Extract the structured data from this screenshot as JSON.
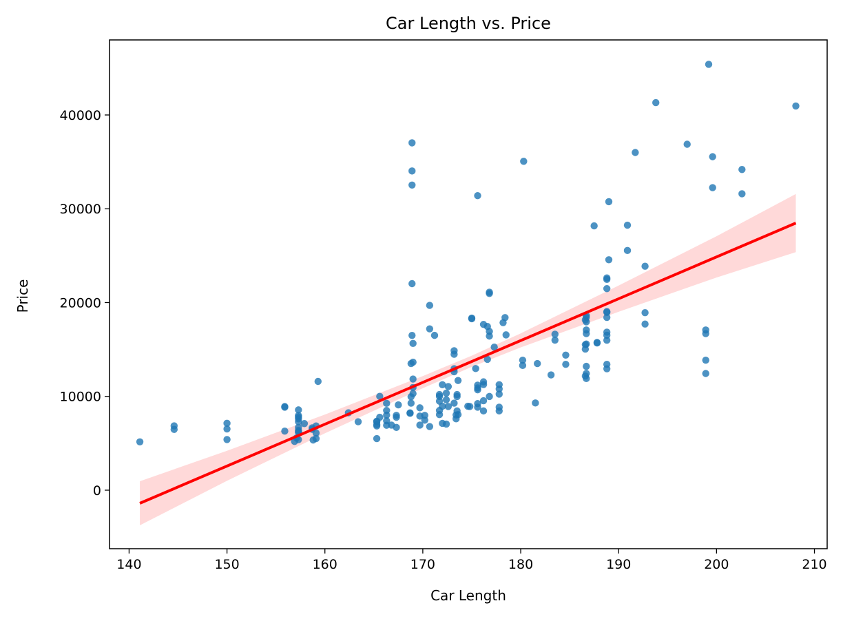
{
  "chart_data": {
    "type": "scatter",
    "title": "Car Length vs. Price",
    "xlabel": "Car Length",
    "ylabel": "Price",
    "xlim": [
      138,
      211.3
    ],
    "ylim": [
      -6240,
      48000
    ],
    "xticks": [
      140,
      150,
      160,
      170,
      180,
      190,
      200,
      210
    ],
    "yticks": [
      0,
      10000,
      20000,
      30000,
      40000
    ],
    "grid": false,
    "colors": {
      "points": "#1f77b4",
      "regression": "#ff0000",
      "band": "#ff0000"
    },
    "points": [
      [
        141.1,
        5151
      ],
      [
        144.6,
        6855
      ],
      [
        144.6,
        6479
      ],
      [
        150,
        7129
      ],
      [
        150,
        6529
      ],
      [
        150,
        5399
      ],
      [
        155.9,
        8916
      ],
      [
        155.9,
        8845
      ],
      [
        155.9,
        6295
      ],
      [
        157.1,
        5572
      ],
      [
        157.3,
        6377
      ],
      [
        157.3,
        6229
      ],
      [
        157.3,
        7957
      ],
      [
        157.3,
        8558
      ],
      [
        157.3,
        7609
      ],
      [
        157.3,
        7799
      ],
      [
        157.3,
        7299
      ],
      [
        157.3,
        6692
      ],
      [
        157.3,
        5389
      ],
      [
        157.3,
        6189
      ],
      [
        156.9,
        5195
      ],
      [
        157.9,
        7099
      ],
      [
        158.7,
        6488
      ],
      [
        158.8,
        5348
      ],
      [
        158.7,
        6649
      ],
      [
        159.1,
        6849
      ],
      [
        159.1,
        6095
      ],
      [
        159.1,
        5499
      ],
      [
        159.3,
        11595
      ],
      [
        162.4,
        8249
      ],
      [
        163.4,
        7295
      ],
      [
        165.3,
        5499
      ],
      [
        165.3,
        6989
      ],
      [
        165.3,
        7349
      ],
      [
        165.3,
        7299
      ],
      [
        165.3,
        6849
      ],
      [
        165.6,
        10005
      ],
      [
        165.6,
        7775
      ],
      [
        166.3,
        7999
      ],
      [
        166.3,
        7395
      ],
      [
        166.3,
        8495
      ],
      [
        166.3,
        9258
      ],
      [
        166.3,
        6918
      ],
      [
        166.8,
        6938
      ],
      [
        167.3,
        7775
      ],
      [
        167.3,
        6695
      ],
      [
        167.5,
        9095
      ],
      [
        167.3,
        7975
      ],
      [
        168.7,
        8195
      ],
      [
        168.8,
        9279
      ],
      [
        168.8,
        9959
      ],
      [
        168.7,
        8238
      ],
      [
        168.8,
        13499
      ],
      [
        168.9,
        16500
      ],
      [
        168.9,
        22018
      ],
      [
        168.9,
        32528
      ],
      [
        168.9,
        34028
      ],
      [
        168.9,
        37028
      ],
      [
        169,
        10295
      ],
      [
        169,
        11850
      ],
      [
        169,
        13645
      ],
      [
        169,
        15645
      ],
      [
        169,
        10945
      ],
      [
        169.7,
        8778
      ],
      [
        169.7,
        6938
      ],
      [
        169.7,
        7898
      ],
      [
        170.2,
        7975
      ],
      [
        170.2,
        7463
      ],
      [
        170.7,
        6785
      ],
      [
        170.7,
        17199
      ],
      [
        170.7,
        19699
      ],
      [
        171.2,
        16503
      ],
      [
        171.7,
        10198
      ],
      [
        171.7,
        9495
      ],
      [
        171.7,
        9995
      ],
      [
        171.7,
        8495
      ],
      [
        171.7,
        8058
      ],
      [
        172,
        11245
      ],
      [
        172,
        7126
      ],
      [
        172,
        8948
      ],
      [
        172.4,
        10345
      ],
      [
        172.4,
        9639
      ],
      [
        172.4,
        7053
      ],
      [
        172.6,
        8921
      ],
      [
        172.6,
        11048
      ],
      [
        173.2,
        9279
      ],
      [
        173.2,
        12945
      ],
      [
        173.2,
        14489
      ],
      [
        173.2,
        14869
      ],
      [
        173.2,
        12629
      ],
      [
        173.4,
        7609
      ],
      [
        173.4,
        8013
      ],
      [
        173.5,
        10198
      ],
      [
        173.5,
        8449
      ],
      [
        173.5,
        9988
      ],
      [
        173.6,
        11694
      ],
      [
        173.6,
        8058
      ],
      [
        174.6,
        8948
      ],
      [
        174.8,
        8921
      ],
      [
        175,
        18280
      ],
      [
        175,
        18344
      ],
      [
        175.4,
        12964
      ],
      [
        175.6,
        9233
      ],
      [
        175.6,
        8845
      ],
      [
        175.6,
        10698
      ],
      [
        175.6,
        11199
      ],
      [
        175.6,
        10898
      ],
      [
        175.6,
        31400
      ],
      [
        176.2,
        9538
      ],
      [
        176.2,
        11259
      ],
      [
        176.2,
        17669
      ],
      [
        176.2,
        8449
      ],
      [
        176.2,
        11549
      ],
      [
        176.6,
        13950
      ],
      [
        176.6,
        17450
      ],
      [
        176.8,
        16925
      ],
      [
        176.8,
        9989
      ],
      [
        176.8,
        20970
      ],
      [
        176.8,
        21105
      ],
      [
        176.8,
        16430
      ],
      [
        177.3,
        15250
      ],
      [
        177.8,
        8449
      ],
      [
        177.8,
        8845
      ],
      [
        177.8,
        10245
      ],
      [
        177.8,
        10795
      ],
      [
        177.8,
        11245
      ],
      [
        178.2,
        17859
      ],
      [
        178.4,
        18399
      ],
      [
        178.5,
        16558
      ],
      [
        180.2,
        13860
      ],
      [
        180.2,
        13295
      ],
      [
        180.3,
        35056
      ],
      [
        181.5,
        9295
      ],
      [
        181.7,
        13499
      ],
      [
        183.1,
        12290
      ],
      [
        183.5,
        15998
      ],
      [
        183.5,
        16630
      ],
      [
        184.6,
        13415
      ],
      [
        184.6,
        14399
      ],
      [
        186.6,
        18150
      ],
      [
        186.6,
        12170
      ],
      [
        186.6,
        15040
      ],
      [
        186.6,
        15510
      ],
      [
        186.7,
        11900
      ],
      [
        186.7,
        12440
      ],
      [
        186.7,
        13200
      ],
      [
        186.7,
        15580
      ],
      [
        186.7,
        16695
      ],
      [
        186.7,
        17075
      ],
      [
        186.7,
        18620
      ],
      [
        186.7,
        18420
      ],
      [
        186.7,
        17950
      ],
      [
        187.5,
        28176
      ],
      [
        187.8,
        15690
      ],
      [
        187.8,
        15750
      ],
      [
        188.8,
        12940
      ],
      [
        188.8,
        13415
      ],
      [
        188.8,
        15985
      ],
      [
        188.8,
        16515
      ],
      [
        188.8,
        16845
      ],
      [
        188.8,
        18420
      ],
      [
        188.8,
        18950
      ],
      [
        188.8,
        19045
      ],
      [
        188.8,
        21485
      ],
      [
        188.8,
        22470
      ],
      [
        188.8,
        22625
      ],
      [
        189,
        24565
      ],
      [
        189,
        30760
      ],
      [
        190.9,
        25552
      ],
      [
        190.9,
        28248
      ],
      [
        191.7,
        36000
      ],
      [
        192.7,
        17710
      ],
      [
        192.7,
        18920
      ],
      [
        192.7,
        23875
      ],
      [
        193.8,
        41315
      ],
      [
        197,
        36880
      ],
      [
        198.9,
        12440
      ],
      [
        198.9,
        13860
      ],
      [
        198.9,
        16695
      ],
      [
        198.9,
        17075
      ],
      [
        199.2,
        45400
      ],
      [
        199.6,
        32250
      ],
      [
        199.6,
        35550
      ],
      [
        202.6,
        31600
      ],
      [
        202.6,
        34184
      ],
      [
        208.1,
        40960
      ]
    ],
    "regression_line": [
      [
        141.1,
        -1395
      ],
      [
        208.1,
        28477
      ]
    ],
    "confidence_band": [
      [
        141.1,
        -3745,
        955
      ],
      [
        150,
        1000,
        4200
      ],
      [
        160,
        6064,
        8064
      ],
      [
        170,
        10866,
        12166
      ],
      [
        175,
        13142,
        14342
      ],
      [
        180,
        15218,
        16718
      ],
      [
        190,
        19020,
        21820
      ],
      [
        200,
        22672,
        27072
      ],
      [
        208.1,
        25377,
        31577
      ]
    ]
  }
}
